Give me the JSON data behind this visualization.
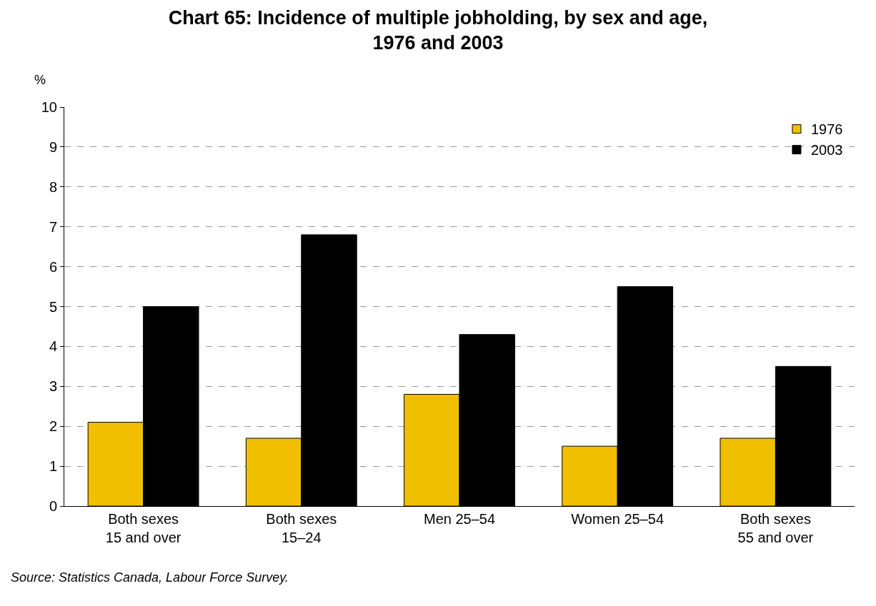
{
  "chart_data": {
    "type": "bar",
    "title": "Chart 65: Incidence of multiple jobholding, by sex and age,\n1976 and 2003",
    "ylabel": "%",
    "categories": [
      "Both sexes\n15 and over",
      "Both sexes\n15–24",
      "Men 25–54",
      "Women 25–54",
      "Both sexes\n55 and over"
    ],
    "series": [
      {
        "name": "1976",
        "color": "#f0c000",
        "values": [
          2.1,
          1.7,
          2.8,
          1.5,
          1.7
        ]
      },
      {
        "name": "2003",
        "color": "#000000",
        "values": [
          5.0,
          6.8,
          4.3,
          5.5,
          3.5
        ]
      }
    ],
    "ylim": [
      0,
      10
    ],
    "yticks": [
      0,
      1,
      2,
      3,
      4,
      5,
      6,
      7,
      8,
      9,
      10
    ],
    "grid": "y",
    "legend": "top right",
    "annotations": [
      "Source: Statistics Canada, Labour Force Survey."
    ]
  }
}
